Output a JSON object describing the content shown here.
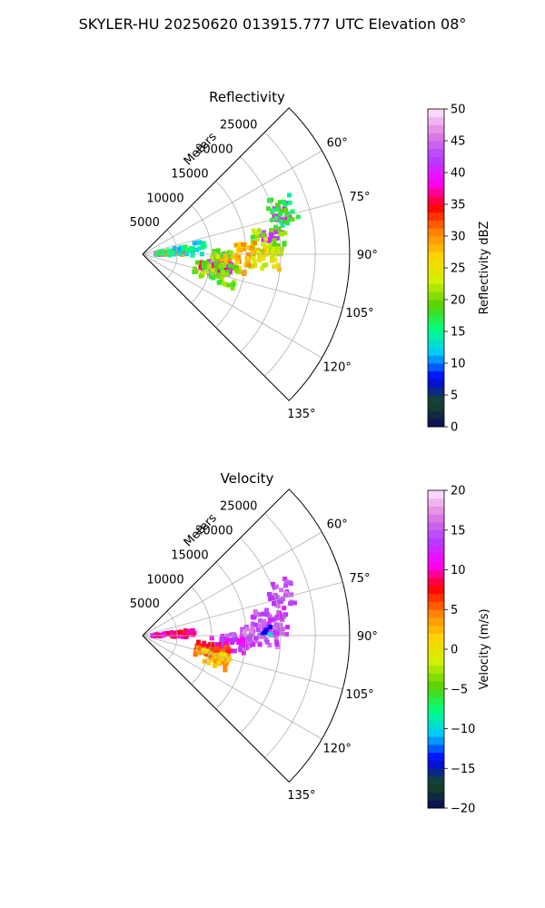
{
  "figure": {
    "suptitle": "SKYLER-HU  20250620  013915.777 UTC Elevation 08°"
  },
  "chart_data": [
    {
      "type": "heatmap",
      "projection": "polar-sector",
      "title": "Reflectivity",
      "radial_label": "Meters",
      "radial_ticks": [
        "5000",
        "10000",
        "15000",
        "20000",
        "25000"
      ],
      "radial_tick_values": [
        5000,
        10000,
        15000,
        20000,
        25000
      ],
      "angle_ticks": [
        "60°",
        "75°",
        "90°",
        "105°",
        "120°",
        "135°"
      ],
      "angle_tick_values": [
        60,
        75,
        90,
        105,
        120,
        135
      ],
      "angle_range": [
        45,
        135
      ],
      "radius_range": [
        0,
        30000
      ],
      "grid": true,
      "colorbar": {
        "label": "Reflectivity dBZ",
        "range": [
          0,
          50
        ],
        "ticks": [
          "0",
          "5",
          "10",
          "15",
          "20",
          "25",
          "30",
          "35",
          "40",
          "45",
          "50"
        ],
        "tick_values": [
          0,
          5,
          10,
          15,
          20,
          25,
          30,
          35,
          40,
          45,
          50
        ],
        "stops": [
          "#0a0a5a",
          "#164a20",
          "#0000ff",
          "#00c8ff",
          "#00ff80",
          "#5ad200",
          "#d2f000",
          "#ffd200",
          "#ff8000",
          "#ff0000",
          "#ff00ff",
          "#b040ff",
          "#e080e0",
          "#ffe8ff"
        ]
      },
      "cells": [
        {
          "az": 73,
          "r": 21000,
          "value": 40,
          "n": 18,
          "spread_r": 1400,
          "spread_az": 4
        },
        {
          "az": 73,
          "r": 21000,
          "value": 17,
          "n": 30,
          "spread_r": 2200,
          "spread_az": 6
        },
        {
          "az": 82,
          "r": 19000,
          "value": 42,
          "n": 20,
          "spread_r": 1500,
          "spread_az": 3
        },
        {
          "az": 84,
          "r": 18500,
          "value": 20,
          "n": 45,
          "spread_r": 2600,
          "spread_az": 6
        },
        {
          "az": 88,
          "r": 16000,
          "value": 28,
          "n": 30,
          "spread_r": 2500,
          "spread_az": 4
        },
        {
          "az": 93,
          "r": 17500,
          "value": 25,
          "n": 25,
          "spread_r": 2600,
          "spread_az": 4
        },
        {
          "az": 91,
          "r": 11500,
          "value": 20,
          "n": 25,
          "spread_r": 1500,
          "spread_az": 4
        },
        {
          "az": 96,
          "r": 13000,
          "value": 28,
          "n": 35,
          "spread_r": 2500,
          "spread_az": 5
        },
        {
          "az": 100,
          "r": 11500,
          "value": 42,
          "n": 25,
          "spread_r": 1800,
          "spread_az": 4
        },
        {
          "az": 103,
          "r": 10500,
          "value": 36,
          "n": 25,
          "spread_r": 2000,
          "spread_az": 5
        },
        {
          "az": 104,
          "r": 11000,
          "value": 20,
          "n": 55,
          "spread_r": 3200,
          "spread_az": 7
        },
        {
          "az": 88,
          "r": 2500,
          "value": 40,
          "n": 18,
          "spread_r": 1000,
          "spread_az": 3
        },
        {
          "az": 87,
          "r": 4000,
          "value": 30,
          "n": 25,
          "spread_r": 2200,
          "spread_az": 4
        },
        {
          "az": 86,
          "r": 5500,
          "value": 15,
          "n": 30,
          "spread_r": 3500,
          "spread_az": 6
        },
        {
          "az": 82,
          "r": 7000,
          "value": 14,
          "n": 12,
          "spread_r": 2500,
          "spread_az": 4
        }
      ]
    },
    {
      "type": "heatmap",
      "projection": "polar-sector",
      "title": "Velocity",
      "radial_label": "Meters",
      "radial_ticks": [
        "5000",
        "10000",
        "15000",
        "20000",
        "25000"
      ],
      "radial_tick_values": [
        5000,
        10000,
        15000,
        20000,
        25000
      ],
      "angle_ticks": [
        "60°",
        "75°",
        "90°",
        "105°",
        "120°",
        "135°"
      ],
      "angle_tick_values": [
        60,
        75,
        90,
        105,
        120,
        135
      ],
      "angle_range": [
        45,
        135
      ],
      "radius_range": [
        0,
        30000
      ],
      "grid": true,
      "colorbar": {
        "label": "Velocity (m/s)",
        "range": [
          -20,
          20
        ],
        "ticks": [
          "−20",
          "−15",
          "−10",
          "−5",
          "0",
          "5",
          "10",
          "15",
          "20"
        ],
        "tick_values": [
          -20,
          -15,
          -10,
          -5,
          0,
          5,
          10,
          15,
          20
        ],
        "stops": [
          "#0a0a5a",
          "#164a20",
          "#0000ff",
          "#00c8ff",
          "#00ff80",
          "#5ad200",
          "#d2f000",
          "#ffd200",
          "#ff8000",
          "#ff0000",
          "#ff00ff",
          "#b040ff",
          "#e080e0",
          "#ffe8ff"
        ]
      },
      "cells": [
        {
          "az": 73,
          "r": 21000,
          "value": 15,
          "n": 35,
          "spread_r": 1800,
          "spread_az": 5
        },
        {
          "az": 84,
          "r": 18500,
          "value": 14,
          "n": 60,
          "spread_r": 2600,
          "spread_az": 6
        },
        {
          "az": 90,
          "r": 17000,
          "value": 15,
          "n": 45,
          "spread_r": 2600,
          "spread_az": 5
        },
        {
          "az": 88,
          "r": 18000,
          "value": -12,
          "n": 6,
          "spread_r": 600,
          "spread_az": 2
        },
        {
          "az": 93,
          "r": 14000,
          "value": 14,
          "n": 35,
          "spread_r": 2500,
          "spread_az": 4
        },
        {
          "az": 96,
          "r": 12500,
          "value": 12,
          "n": 35,
          "spread_r": 2500,
          "spread_az": 4
        },
        {
          "az": 101,
          "r": 10500,
          "value": 8,
          "n": 40,
          "spread_r": 2500,
          "spread_az": 5
        },
        {
          "az": 105,
          "r": 10500,
          "value": 5,
          "n": 40,
          "spread_r": 2500,
          "spread_az": 5
        },
        {
          "az": 108,
          "r": 11000,
          "value": 2,
          "n": 25,
          "spread_r": 2000,
          "spread_az": 5
        },
        {
          "az": 88,
          "r": 4000,
          "value": 10,
          "n": 50,
          "spread_r": 2600,
          "spread_az": 4
        },
        {
          "az": 87,
          "r": 6000,
          "value": 9,
          "n": 25,
          "spread_r": 1800,
          "spread_az": 4
        }
      ]
    }
  ]
}
